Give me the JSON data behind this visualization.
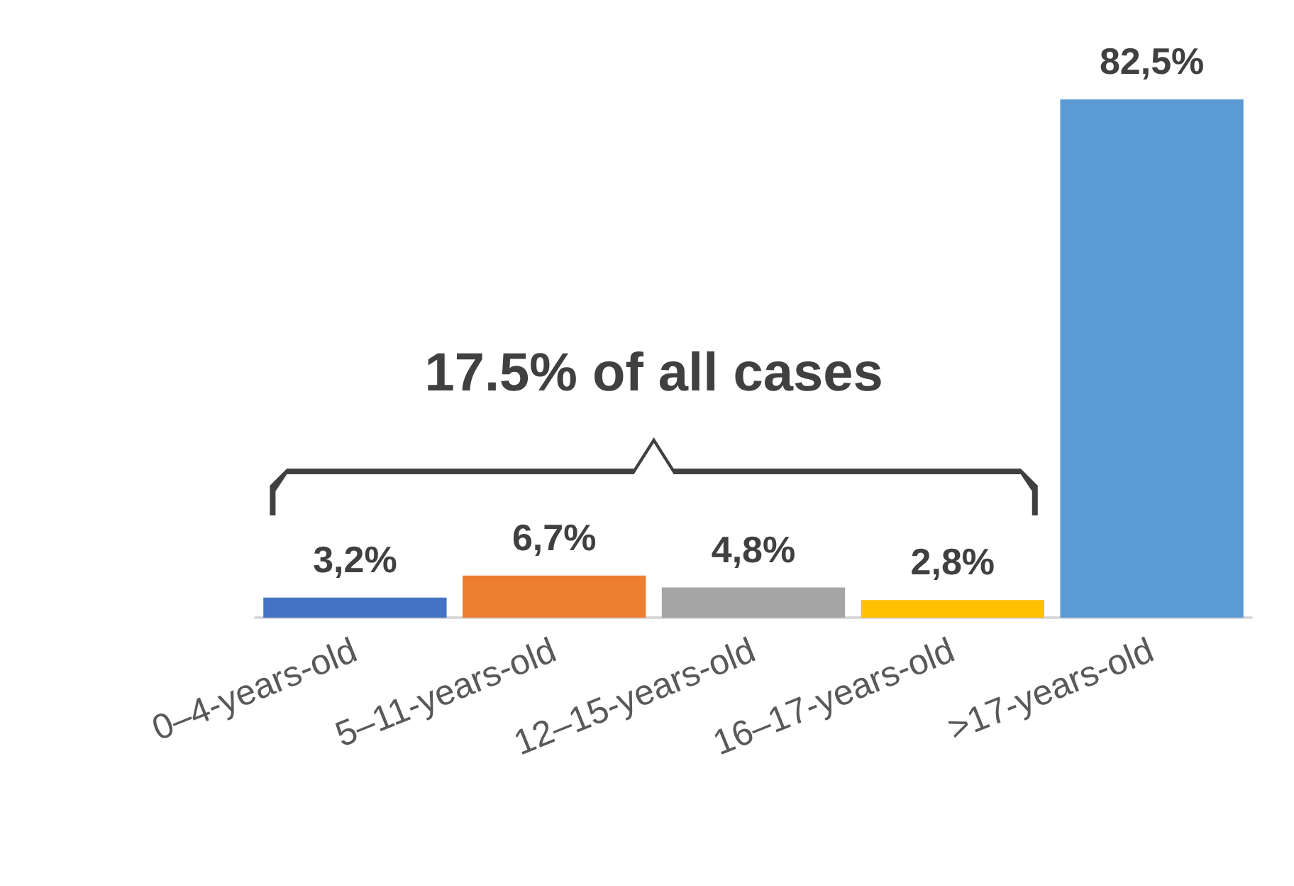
{
  "chart_data": {
    "type": "bar",
    "categories": [
      "0–4-years-old",
      "5–11-years-old",
      "12–15-years-old",
      "16–17-years-old",
      ">17-years-old"
    ],
    "values": [
      3.2,
      6.7,
      4.8,
      2.8,
      82.5
    ],
    "value_labels": [
      "3,2%",
      "6,7%",
      "4,8%",
      "2,8%",
      "82,5%"
    ],
    "colors": [
      "#4472c4",
      "#ed7d31",
      "#a5a5a5",
      "#ffc000",
      "#5b9bd5"
    ],
    "annotations": [
      "17.5% of all cases"
    ],
    "grid": false
  }
}
